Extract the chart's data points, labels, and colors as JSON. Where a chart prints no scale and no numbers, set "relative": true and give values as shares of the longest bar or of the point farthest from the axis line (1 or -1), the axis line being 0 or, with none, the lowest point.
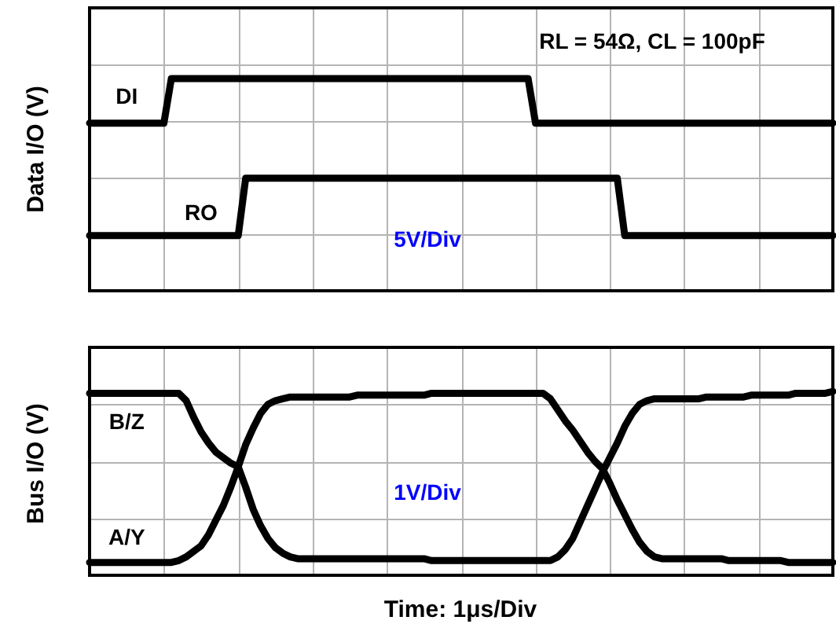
{
  "chart_data": [
    {
      "type": "line",
      "relative": true,
      "grid": true,
      "ylabel": "Data I/O (V)",
      "annotations": [
        "RL = 54Ω, CL = 100pF",
        "5V/Div"
      ],
      "categories": [
        null,
        null,
        null,
        null,
        null,
        null,
        null,
        null,
        null,
        null,
        null,
        null,
        null,
        null,
        null,
        null,
        null,
        null,
        null,
        null,
        null,
        null,
        null,
        null,
        null,
        null,
        null,
        null,
        null,
        null,
        null,
        null,
        null,
        null,
        null,
        null,
        null,
        null,
        null,
        null,
        null,
        null,
        null,
        null,
        null,
        null,
        null,
        null,
        null,
        null,
        null,
        null,
        null,
        null,
        null,
        null,
        null,
        null,
        null,
        null,
        null,
        null,
        null,
        null,
        null,
        null,
        null,
        null,
        null,
        null,
        null,
        null,
        null,
        null,
        null,
        null,
        null,
        null,
        null,
        null,
        null,
        null,
        null,
        null,
        null,
        null,
        null,
        null,
        null,
        null,
        null,
        null,
        null,
        null,
        null,
        null,
        null,
        null,
        null,
        null,
        null
      ],
      "series": [
        {
          "name": "DI",
          "color": "#000000",
          "values": [
            0.79,
            0.79,
            0.79,
            0.79,
            0.79,
            0.79,
            0.79,
            0.79,
            0.79,
            0.79,
            0.79,
            1,
            1,
            1,
            1,
            1,
            1,
            1,
            1,
            1,
            1,
            1,
            1,
            1,
            1,
            1,
            1,
            1,
            1,
            1,
            1,
            1,
            1,
            1,
            1,
            1,
            1,
            1,
            1,
            1,
            1,
            1,
            1,
            1,
            1,
            1,
            1,
            1,
            1,
            1,
            1,
            1,
            1,
            1,
            1,
            1,
            1,
            1,
            1,
            1,
            0.79,
            0.79,
            0.79,
            0.79,
            0.79,
            0.79,
            0.79,
            0.79,
            0.79,
            0.79,
            0.79,
            0.79,
            0.79,
            0.79,
            0.79,
            0.79,
            0.79,
            0.79,
            0.79,
            0.79,
            0.79,
            0.79,
            0.79,
            0.79,
            0.79,
            0.79,
            0.79,
            0.79,
            0.79,
            0.79,
            0.79,
            0.79,
            0.79,
            0.79,
            0.79,
            0.79,
            0.79,
            0.79,
            0.79,
            0.79,
            0.79
          ]
        },
        {
          "name": "RO",
          "color": "#000000",
          "values": [
            0.26,
            0.26,
            0.26,
            0.26,
            0.26,
            0.26,
            0.26,
            0.26,
            0.26,
            0.26,
            0.26,
            0.26,
            0.26,
            0.26,
            0.26,
            0.26,
            0.26,
            0.26,
            0.26,
            0.26,
            0.26,
            0.53,
            0.53,
            0.53,
            0.53,
            0.53,
            0.53,
            0.53,
            0.53,
            0.53,
            0.53,
            0.53,
            0.53,
            0.53,
            0.53,
            0.53,
            0.53,
            0.53,
            0.53,
            0.53,
            0.53,
            0.53,
            0.53,
            0.53,
            0.53,
            0.53,
            0.53,
            0.53,
            0.53,
            0.53,
            0.53,
            0.53,
            0.53,
            0.53,
            0.53,
            0.53,
            0.53,
            0.53,
            0.53,
            0.53,
            0.53,
            0.53,
            0.53,
            0.53,
            0.53,
            0.53,
            0.53,
            0.53,
            0.53,
            0.53,
            0.53,
            0.53,
            0.26,
            0.26,
            0.26,
            0.26,
            0.26,
            0.26,
            0.26,
            0.26,
            0.26,
            0.26,
            0.26,
            0.26,
            0.26,
            0.26,
            0.26,
            0.26,
            0.26,
            0.26,
            0.26,
            0.26,
            0.26,
            0.26,
            0.26,
            0.26,
            0.26,
            0.26,
            0.26,
            0.26,
            0.26
          ]
        }
      ]
    },
    {
      "type": "line",
      "relative": true,
      "grid": true,
      "ylabel": "Bus I/O (V)",
      "xlabel": "Time: 1μs/Div",
      "annotations": [
        "1V/Div"
      ],
      "categories": [
        null,
        null,
        null,
        null,
        null,
        null,
        null,
        null,
        null,
        null,
        null,
        null,
        null,
        null,
        null,
        null,
        null,
        null,
        null,
        null,
        null,
        null,
        null,
        null,
        null,
        null,
        null,
        null,
        null,
        null,
        null,
        null,
        null,
        null,
        null,
        null,
        null,
        null,
        null,
        null,
        null,
        null,
        null,
        null,
        null,
        null,
        null,
        null,
        null,
        null,
        null,
        null,
        null,
        null,
        null,
        null,
        null,
        null,
        null,
        null,
        null,
        null,
        null,
        null,
        null,
        null,
        null,
        null,
        null,
        null,
        null,
        null,
        null,
        null,
        null,
        null,
        null,
        null,
        null,
        null,
        null,
        null,
        null,
        null,
        null,
        null,
        null,
        null,
        null,
        null,
        null,
        null,
        null,
        null,
        null,
        null,
        null,
        null,
        null,
        null,
        null
      ],
      "series": [
        {
          "name": "B/Z",
          "color": "#000000",
          "values": [
            0.99,
            0.99,
            0.99,
            0.99,
            0.99,
            0.99,
            0.99,
            0.99,
            0.99,
            0.99,
            0.99,
            0.99,
            0.99,
            0.95,
            0.86,
            0.78,
            0.72,
            0.67,
            0.64,
            0.61,
            0.59,
            0.48,
            0.36,
            0.27,
            0.2,
            0.15,
            0.12,
            0.1,
            0.09,
            0.09,
            0.09,
            0.09,
            0.09,
            0.09,
            0.09,
            0.09,
            0.09,
            0.09,
            0.09,
            0.09,
            0.09,
            0.09,
            0.09,
            0.09,
            0.09,
            0.09,
            0.08,
            0.08,
            0.08,
            0.08,
            0.08,
            0.08,
            0.08,
            0.08,
            0.08,
            0.08,
            0.08,
            0.08,
            0.08,
            0.08,
            0.08,
            0.08,
            0.08,
            0.1,
            0.14,
            0.2,
            0.29,
            0.38,
            0.47,
            0.56,
            0.64,
            0.72,
            0.81,
            0.88,
            0.93,
            0.95,
            0.96,
            0.96,
            0.96,
            0.96,
            0.96,
            0.96,
            0.96,
            0.97,
            0.97,
            0.97,
            0.97,
            0.97,
            0.97,
            0.98,
            0.98,
            0.98,
            0.98,
            0.98,
            0.98,
            0.99,
            0.99,
            0.99,
            0.99,
            0.99,
            1
          ]
        },
        {
          "name": "A/Y",
          "color": "#000000",
          "values": [
            0.07,
            0.07,
            0.07,
            0.07,
            0.07,
            0.07,
            0.07,
            0.07,
            0.07,
            0.07,
            0.07,
            0.07,
            0.08,
            0.1,
            0.13,
            0.16,
            0.22,
            0.3,
            0.38,
            0.48,
            0.59,
            0.71,
            0.8,
            0.88,
            0.93,
            0.95,
            0.96,
            0.97,
            0.97,
            0.97,
            0.97,
            0.97,
            0.97,
            0.97,
            0.97,
            0.97,
            0.98,
            0.98,
            0.98,
            0.98,
            0.98,
            0.98,
            0.98,
            0.98,
            0.98,
            0.98,
            0.99,
            0.99,
            0.99,
            0.99,
            0.99,
            0.99,
            0.99,
            0.99,
            0.99,
            0.99,
            0.99,
            0.99,
            0.99,
            0.99,
            0.99,
            0.99,
            0.96,
            0.9,
            0.84,
            0.79,
            0.73,
            0.67,
            0.62,
            0.58,
            0.5,
            0.41,
            0.33,
            0.25,
            0.18,
            0.13,
            0.1,
            0.09,
            0.09,
            0.09,
            0.09,
            0.09,
            0.09,
            0.09,
            0.09,
            0.09,
            0.08,
            0.08,
            0.08,
            0.08,
            0.08,
            0.08,
            0.08,
            0.08,
            0.07,
            0.07,
            0.07,
            0.07,
            0.07,
            0.07,
            0.07
          ]
        }
      ]
    }
  ]
}
